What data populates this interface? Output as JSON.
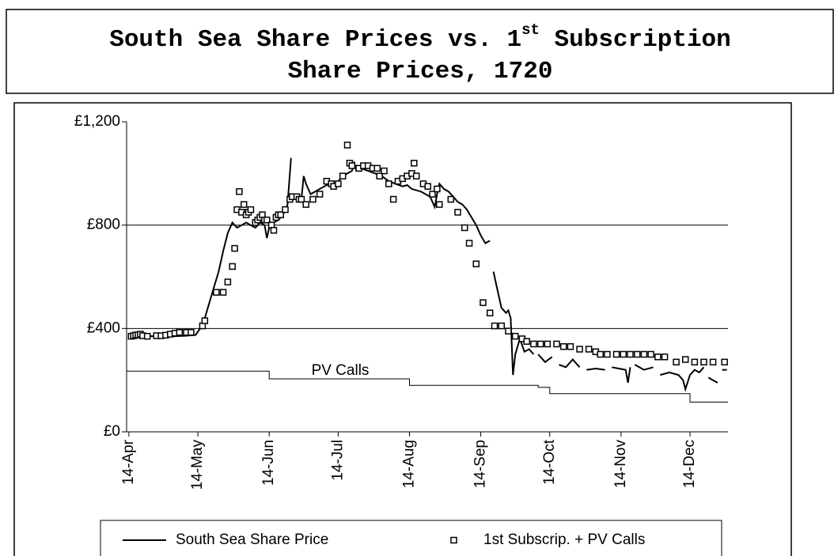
{
  "chart_data": {
    "type": "line",
    "title": [
      "South Sea Share Prices vs. 1",
      "st",
      " Subscription",
      "Share Prices, 1720"
    ],
    "xlim": [
      -1,
      260.5
    ],
    "ylim": [
      0,
      1200
    ],
    "yticks": [
      {
        "value": 0,
        "label": "£0"
      },
      {
        "value": 400,
        "label": "£400"
      },
      {
        "value": 800,
        "label": "£800"
      },
      {
        "value": 1200,
        "label": "£1,200"
      }
    ],
    "xticks": [
      {
        "value": 0,
        "label": "14-Apr"
      },
      {
        "value": 30,
        "label": "14-May"
      },
      {
        "value": 61,
        "label": "14-Jun"
      },
      {
        "value": 91,
        "label": "14-Jul"
      },
      {
        "value": 122,
        "label": "14-Aug"
      },
      {
        "value": 153,
        "label": "14-Sep"
      },
      {
        "value": 183,
        "label": "14-Oct"
      },
      {
        "value": 214,
        "label": "14-Nov"
      },
      {
        "value": 244,
        "label": "14-Dec"
      }
    ],
    "grid": true,
    "legend": "bottom",
    "series": [
      {
        "name": "South Sea Share Price",
        "type": "line",
        "color": "#000000",
        "x": [
          0,
          3,
          6,
          10,
          15,
          20,
          25,
          29,
          31,
          33,
          35,
          37,
          39,
          41,
          43,
          45,
          47,
          49,
          51,
          53,
          55,
          57,
          59,
          60,
          61,
          63,
          65,
          67,
          69,
          70.5,
          72,
          73,
          75,
          76,
          77,
          79,
          81,
          83,
          85,
          87,
          89,
          91,
          93,
          95,
          97,
          98,
          99,
          101,
          104,
          107,
          110,
          113,
          116,
          119,
          121,
          123,
          125,
          127,
          129,
          131,
          133,
          134,
          135,
          137,
          139,
          141,
          143,
          145,
          147,
          149,
          151,
          153,
          155,
          157,
          158,
          158.5,
          160,
          162,
          164,
          165,
          166,
          167,
          168,
          170,
          172,
          174,
          176,
          177,
          178,
          181,
          184,
          186,
          187,
          190,
          193,
          196,
          198,
          199,
          203,
          207,
          209,
          210,
          213,
          216,
          217,
          218,
          219,
          220,
          224,
          228,
          230,
          231,
          235,
          239,
          241,
          242,
          244,
          246,
          248,
          250,
          251,
          252,
          254,
          256,
          257,
          258,
          260
        ],
        "values": [
          365,
          370,
          372,
          370,
          372,
          370,
          372,
          375,
          400,
          440,
          500,
          560,
          620,
          700,
          770,
          810,
          790,
          800,
          810,
          800,
          790,
          810,
          800,
          750,
          790,
          810,
          820,
          840,
          880,
          1060,
          null,
          920,
          900,
          990,
          960,
          920,
          930,
          940,
          950,
          960,
          950,
          970,
          990,
          1000,
          1010,
          1040,
          1010,
          1020,
          1010,
          1000,
          990,
          970,
          960,
          950,
          955,
          940,
          935,
          930,
          920,
          910,
          870,
          920,
          960,
          940,
          930,
          910,
          890,
          880,
          860,
          830,
          800,
          760,
          730,
          740,
          null,
          620,
          560,
          480,
          460,
          470,
          440,
          220,
          300,
          360,
          310,
          320,
          300,
          null,
          300,
          270,
          290,
          null,
          260,
          250,
          280,
          250,
          null,
          240,
          245,
          240,
          null,
          250,
          245,
          240,
          190,
          250,
          null,
          260,
          240,
          250,
          null,
          220,
          230,
          220,
          200,
          165,
          220,
          240,
          230,
          250,
          null,
          210,
          200,
          190,
          null,
          240,
          240
        ]
      },
      {
        "name": "1st Subscrip. + PV Calls",
        "type": "scatter",
        "marker": "square",
        "color": "#000000",
        "x": [
          1,
          2,
          3,
          4,
          5,
          6,
          8,
          12,
          14,
          16,
          18,
          20,
          22,
          25,
          27,
          32,
          33,
          38,
          41,
          43,
          45,
          46,
          47,
          48,
          49,
          50,
          51,
          52,
          53,
          55,
          56,
          57,
          58,
          59,
          60,
          62,
          63,
          64,
          65,
          66,
          68,
          70,
          71,
          73,
          74,
          75,
          77,
          80,
          83,
          86,
          88,
          89,
          91,
          93,
          95,
          96,
          97,
          100,
          102,
          104,
          106,
          108,
          109,
          111,
          113,
          115,
          117,
          119,
          121,
          123,
          124,
          125,
          128,
          130,
          132,
          134,
          135,
          140,
          143,
          146,
          148,
          151,
          154,
          157,
          159,
          162,
          165,
          168,
          171,
          173,
          176,
          179,
          182,
          186,
          189,
          192,
          196,
          200,
          203,
          205,
          208,
          212,
          215,
          218,
          221,
          224,
          227,
          230,
          233,
          238,
          242,
          246,
          250,
          254,
          259
        ],
        "values": [
          370,
          372,
          375,
          375,
          378,
          372,
          370,
          372,
          372,
          374,
          378,
          382,
          385,
          385,
          385,
          410,
          430,
          540,
          540,
          580,
          640,
          710,
          860,
          930,
          850,
          880,
          840,
          850,
          860,
          810,
          820,
          830,
          840,
          820,
          820,
          800,
          780,
          830,
          840,
          840,
          860,
          900,
          910,
          910,
          900,
          900,
          880,
          900,
          920,
          970,
          960,
          950,
          960,
          990,
          1110,
          1040,
          1030,
          1020,
          1030,
          1030,
          1020,
          1020,
          990,
          1010,
          960,
          900,
          970,
          980,
          990,
          1000,
          1040,
          990,
          960,
          950,
          920,
          940,
          880,
          900,
          850,
          790,
          730,
          650,
          500,
          460,
          410,
          410,
          390,
          370,
          360,
          350,
          340,
          340,
          340,
          340,
          330,
          330,
          320,
          320,
          310,
          300,
          300,
          300,
          300,
          300,
          300,
          300,
          300,
          290,
          290,
          270,
          280,
          270,
          270,
          270,
          270
        ]
      }
    ],
    "pv_calls": {
      "name": "PV Calls",
      "color": "#000000",
      "x": [
        -1,
        61,
        61,
        122,
        122,
        178,
        178,
        183,
        183,
        244,
        244,
        260.5
      ],
      "values": [
        235,
        235,
        205,
        205,
        180,
        180,
        172,
        172,
        148,
        148,
        115,
        115
      ]
    }
  }
}
